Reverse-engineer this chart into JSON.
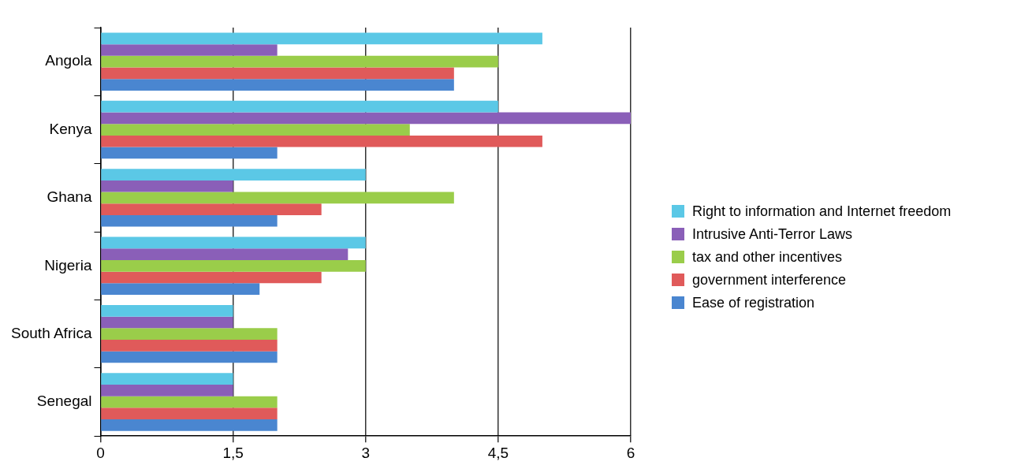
{
  "chart_data": {
    "type": "bar",
    "orientation": "horizontal",
    "categories": [
      "Angola",
      "Kenya",
      "Ghana",
      "Nigeria",
      "South Africa",
      "Senegal"
    ],
    "series": [
      {
        "name": "Right to information and Internet freedom",
        "color": "#5bc8e6",
        "values": [
          5,
          4.5,
          3,
          3,
          1.5,
          1.5
        ]
      },
      {
        "name": "Intrusive Anti-Terror Laws",
        "color": "#8a5fb8",
        "values": [
          2,
          6,
          1.5,
          2.8,
          1.5,
          1.5
        ]
      },
      {
        "name": "tax and other incentives",
        "color": "#9acd4a",
        "values": [
          4.5,
          3.5,
          4,
          3,
          2,
          2
        ]
      },
      {
        "name": "government interference",
        "color": "#e05a5a",
        "values": [
          4,
          5,
          2.5,
          2.5,
          2,
          2
        ]
      },
      {
        "name": "Ease of registration",
        "color": "#4a86d0",
        "values": [
          4,
          2,
          2,
          1.8,
          2,
          2
        ]
      }
    ],
    "xlim": [
      0,
      6
    ],
    "xticks": [
      0,
      {
        "value": 1.5,
        "label": "1,5"
      },
      3,
      {
        "value": 4.5,
        "label": "4,5"
      },
      6
    ],
    "grid": "x",
    "legend": "right"
  }
}
